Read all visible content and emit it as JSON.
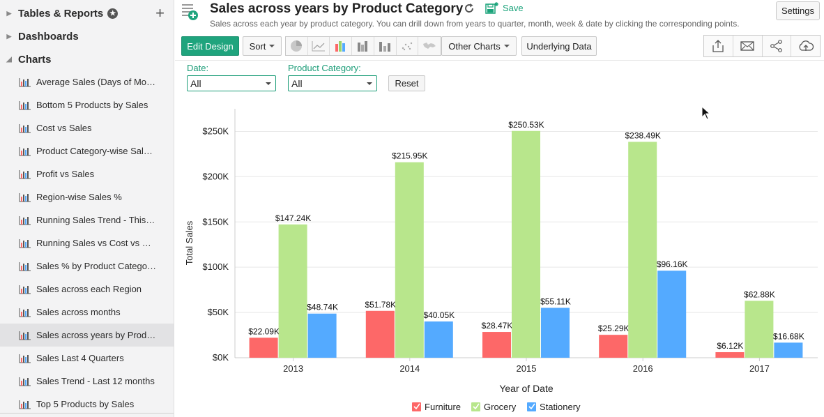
{
  "sidebar": {
    "sections": [
      {
        "label": "Tables & Reports",
        "expanded": false
      },
      {
        "label": "Dashboards",
        "expanded": false
      },
      {
        "label": "Charts",
        "expanded": true
      }
    ],
    "chart_items": [
      {
        "label": "Average Sales (Days of Month)"
      },
      {
        "label": "Bottom 5 Products by Sales"
      },
      {
        "label": "Cost vs Sales"
      },
      {
        "label": "Product Category-wise Sales %"
      },
      {
        "label": "Profit vs Sales"
      },
      {
        "label": "Region-wise Sales %"
      },
      {
        "label": "Running Sales Trend - This Y..."
      },
      {
        "label": "Running Sales vs Cost vs Profit"
      },
      {
        "label": "Sales % by Product Category..."
      },
      {
        "label": "Sales across each Region"
      },
      {
        "label": "Sales across months"
      },
      {
        "label": "Sales across years by Produc...",
        "active": true
      },
      {
        "label": "Sales Last 4 Quarters"
      },
      {
        "label": "Sales Trend - Last 12 months"
      },
      {
        "label": "Top 5 Products by Sales"
      }
    ]
  },
  "header": {
    "title": "Sales across years by Product Category",
    "save_label": "Save",
    "subtitle": "Sales across each year by product category. You can drill down from years to quarter, month, week & date by clicking the corresponding points.",
    "settings_label": "Settings"
  },
  "toolbar": {
    "edit_design": "Edit Design",
    "sort": "Sort",
    "other_charts": "Other Charts",
    "underlying_data": "Underlying Data",
    "chart_type_icons": [
      "pie-chart-icon",
      "line-chart-icon",
      "bar-chart-icon",
      "stacked-bar-icon",
      "area-bar-icon",
      "scatter-icon",
      "map-icon"
    ],
    "right_icons": [
      "export-icon",
      "email-icon",
      "share-icon",
      "publish-icon"
    ]
  },
  "filters": {
    "date_label": "Date:",
    "date_value": "All",
    "category_label": "Product Category:",
    "category_value": "All",
    "reset": "Reset"
  },
  "chart_data": {
    "type": "bar",
    "xlabel": "Year of Date",
    "ylabel": "Total Sales",
    "categories": [
      "2013",
      "2014",
      "2015",
      "2016",
      "2017"
    ],
    "ylim": [
      0,
      275000
    ],
    "yticks": [
      0,
      50000,
      100000,
      150000,
      200000,
      250000
    ],
    "ytick_labels": [
      "$0K",
      "$50K",
      "$100K",
      "$150K",
      "$200K",
      "$250K"
    ],
    "grid": true,
    "legend_position": "bottom",
    "series": [
      {
        "name": "Furniture",
        "color": "#fd6868",
        "values": [
          22090,
          51780,
          28470,
          25290,
          6120
        ],
        "labels": [
          "$22.09K",
          "$51.78K",
          "$28.47K",
          "$25.29K",
          "$6.12K"
        ]
      },
      {
        "name": "Grocery",
        "color": "#b8e68c",
        "values": [
          147240,
          215950,
          250530,
          238490,
          62880
        ],
        "labels": [
          "$147.24K",
          "$215.95K",
          "$250.53K",
          "$238.49K",
          "$62.88K"
        ]
      },
      {
        "name": "Stationery",
        "color": "#54aaff",
        "values": [
          48740,
          40050,
          55110,
          96160,
          16680
        ],
        "labels": [
          "$48.74K",
          "$40.05K",
          "$55.11K",
          "$96.16K",
          "$16.68K"
        ]
      }
    ]
  }
}
